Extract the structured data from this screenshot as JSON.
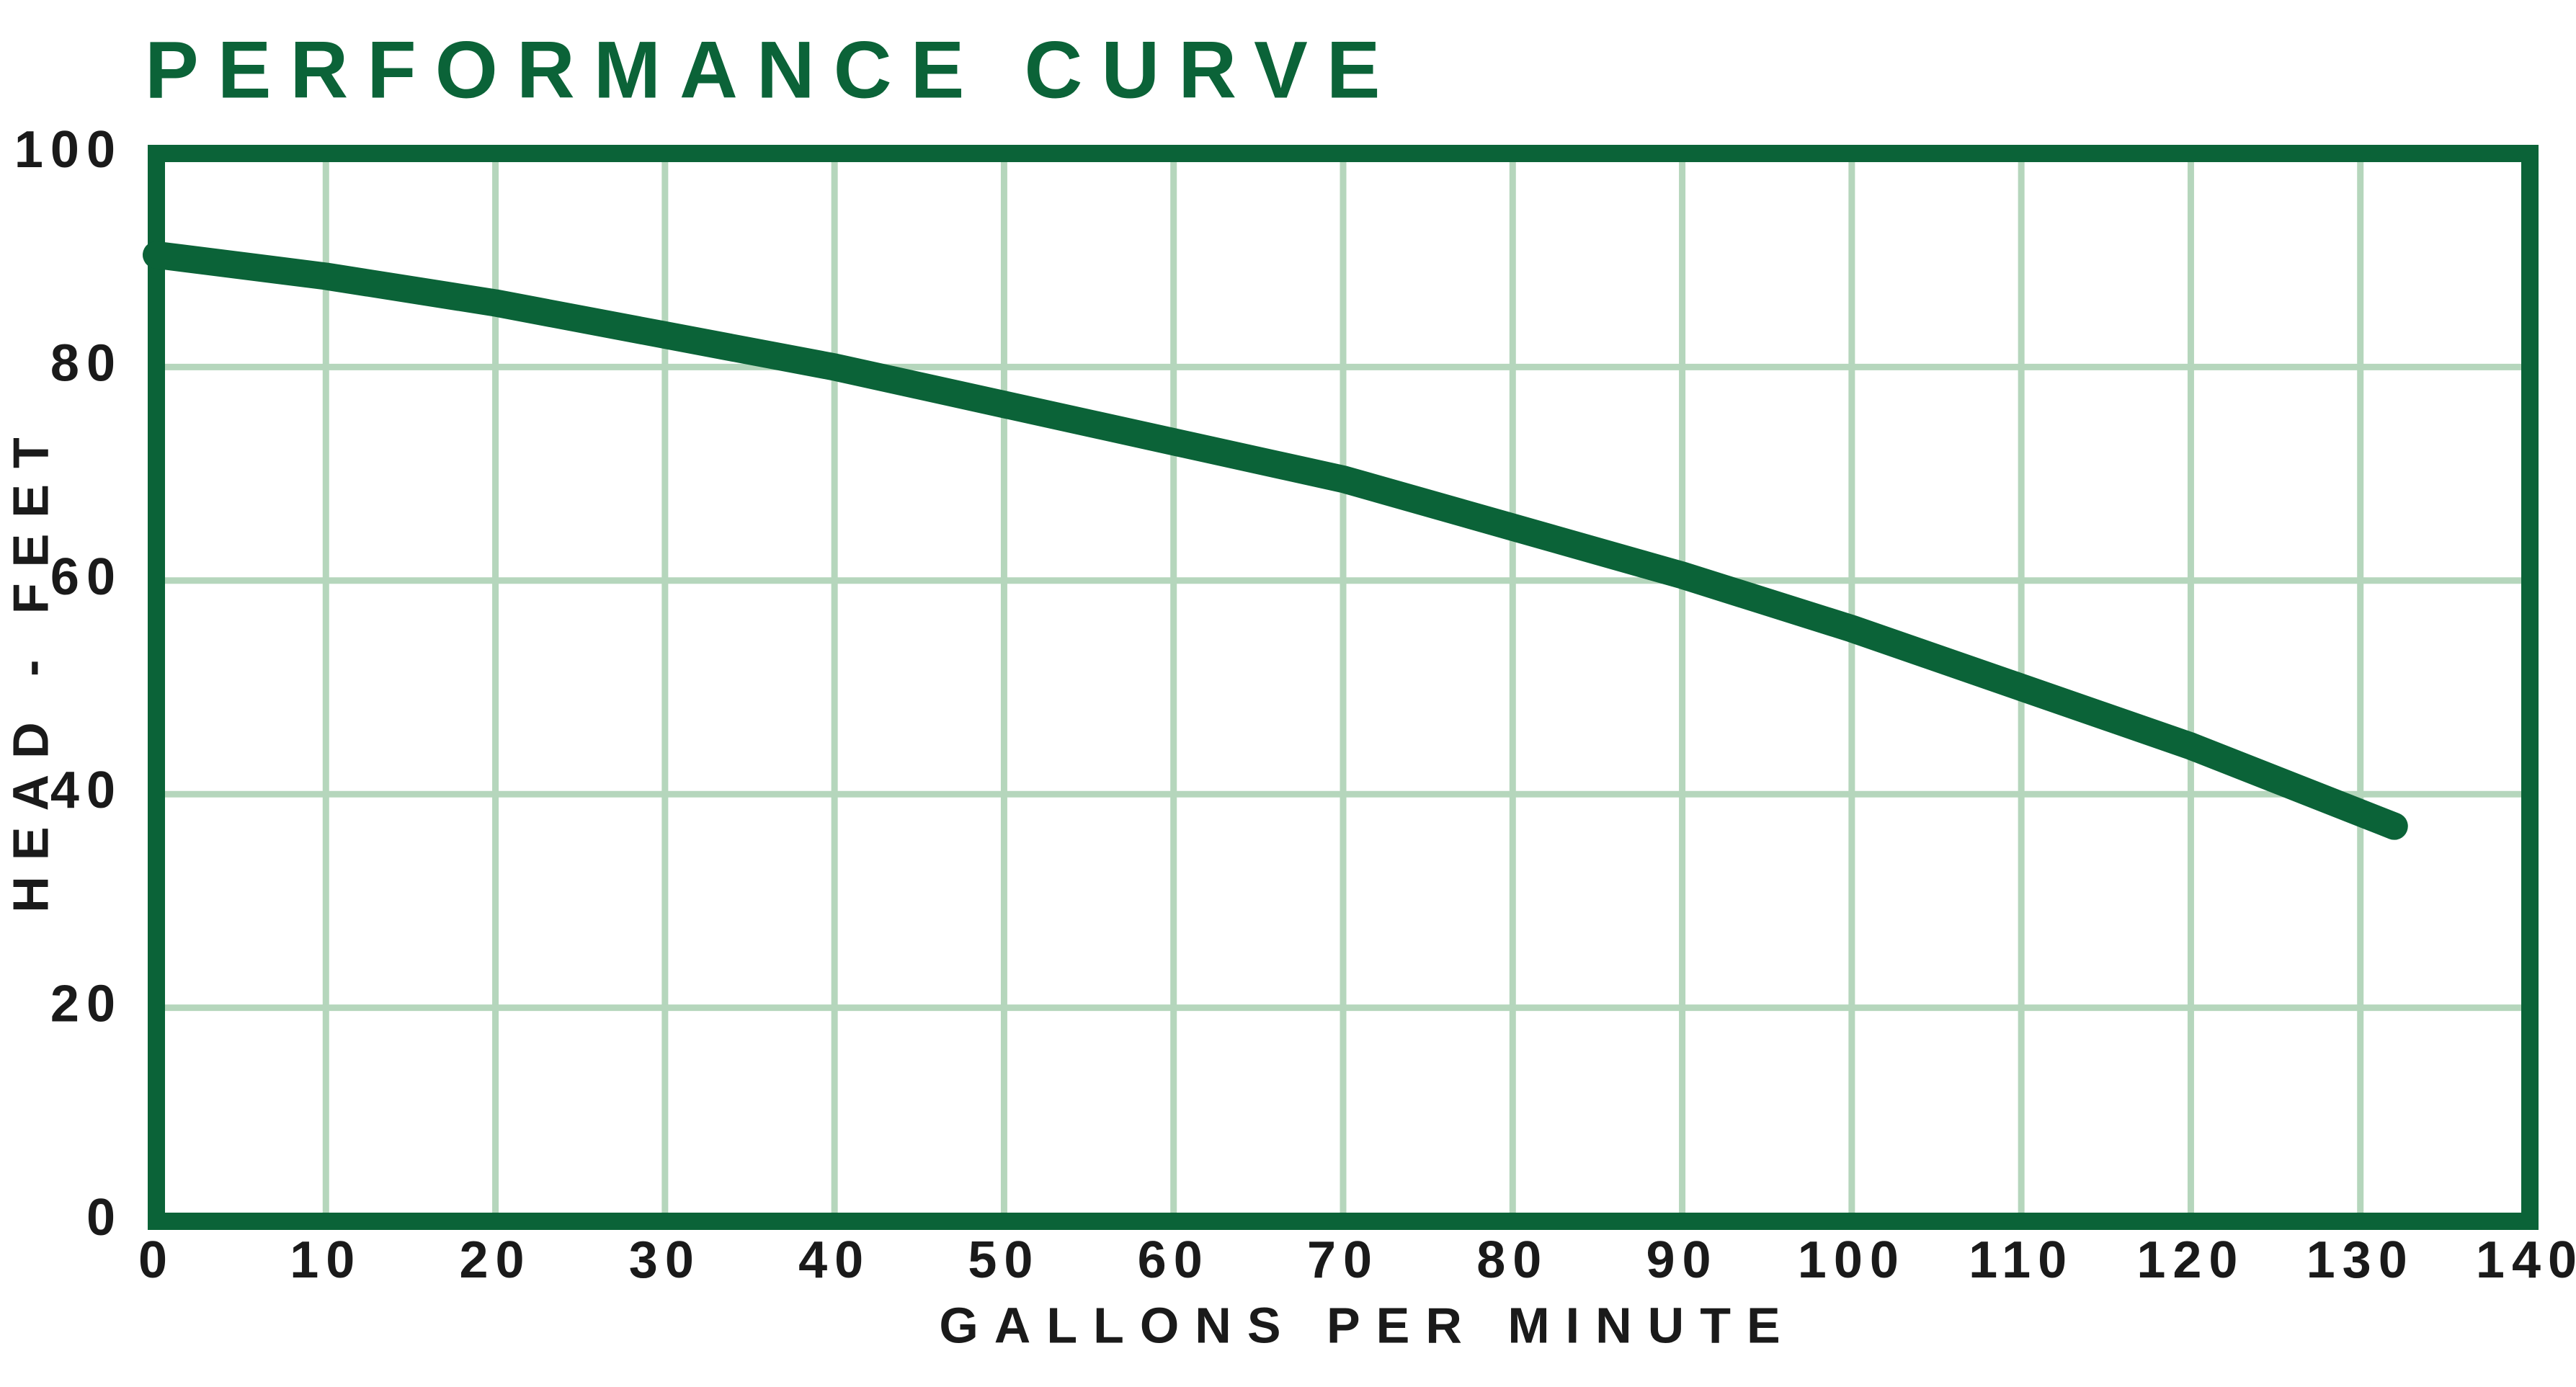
{
  "chart_data": {
    "type": "line",
    "title": "PERFORMANCE CURVE",
    "x_label": "GALLONS PER MINUTE",
    "y_label": "HEAD - FEET",
    "x": [
      0,
      10,
      20,
      30,
      40,
      50,
      60,
      70,
      80,
      90,
      100,
      110,
      120,
      132
    ],
    "values": [
      90.5,
      88.5,
      86,
      83,
      80,
      76.5,
      73,
      69.5,
      65,
      60.5,
      55.5,
      50,
      44.5,
      37
    ],
    "color": "#0b6338",
    "xlim": [
      0,
      140
    ],
    "xticks": [
      0,
      10,
      20,
      30,
      40,
      50,
      60,
      70,
      80,
      90,
      100,
      110,
      120,
      130,
      140
    ],
    "ylim": [
      0,
      100
    ],
    "yticks": [
      0,
      20,
      40,
      60,
      80,
      100
    ],
    "grid": true
  }
}
